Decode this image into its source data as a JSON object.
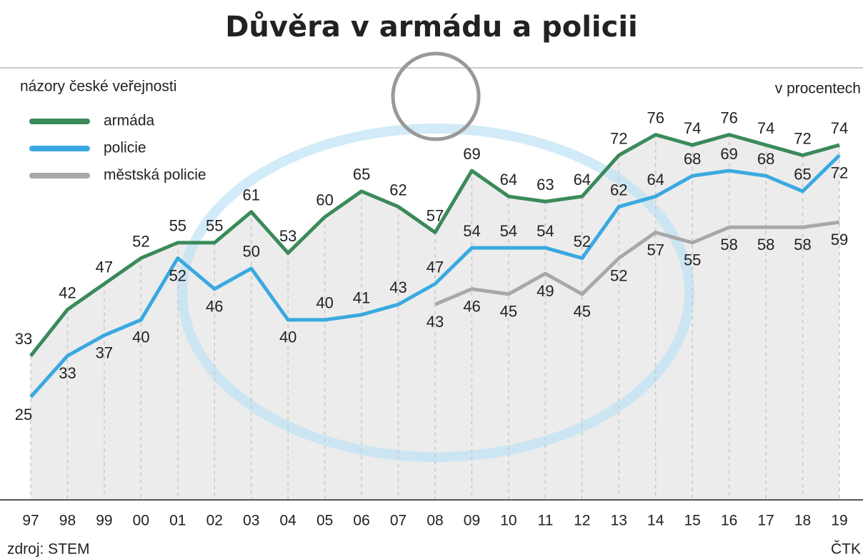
{
  "chart_data": {
    "type": "line",
    "title": "Důvěra v armádu a policii",
    "subtitle": "názory české veřejnosti",
    "unit_note": "v procentech",
    "source": "zdroj: STEM",
    "credit": "ČTK",
    "categories": [
      "97",
      "98",
      "99",
      "00",
      "01",
      "02",
      "03",
      "04",
      "05",
      "06",
      "07",
      "08",
      "09",
      "10",
      "11",
      "12",
      "13",
      "14",
      "15",
      "16",
      "17",
      "18",
      "19"
    ],
    "series": [
      {
        "name": "armáda",
        "color": "#3a8a5a",
        "values": [
          33,
          42,
          47,
          52,
          55,
          55,
          61,
          53,
          60,
          65,
          62,
          57,
          69,
          64,
          63,
          64,
          72,
          76,
          74,
          76,
          74,
          72,
          74
        ]
      },
      {
        "name": "policie",
        "color": "#3aa9e0",
        "values": [
          25,
          33,
          37,
          40,
          52,
          46,
          50,
          40,
          40,
          41,
          43,
          47,
          54,
          54,
          54,
          52,
          62,
          64,
          68,
          69,
          68,
          65,
          72
        ]
      },
      {
        "name": "městská policie",
        "color": "#a8a8a8",
        "values": [
          null,
          null,
          null,
          null,
          null,
          null,
          null,
          null,
          null,
          null,
          null,
          43,
          46,
          45,
          49,
          45,
          52,
          57,
          55,
          58,
          58,
          58,
          59
        ]
      }
    ],
    "ylim": [
      5,
      89
    ]
  }
}
